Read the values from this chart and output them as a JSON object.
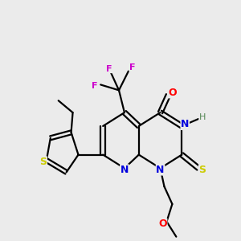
{
  "background_color": "#ebebeb",
  "atom_colors": {
    "N": "#0000dd",
    "O": "#ff0000",
    "S_yellow": "#cccc00",
    "F": "#cc00cc",
    "H": "#558855",
    "C": "#000000"
  },
  "figsize": [
    3.0,
    3.0
  ],
  "dpi": 100
}
